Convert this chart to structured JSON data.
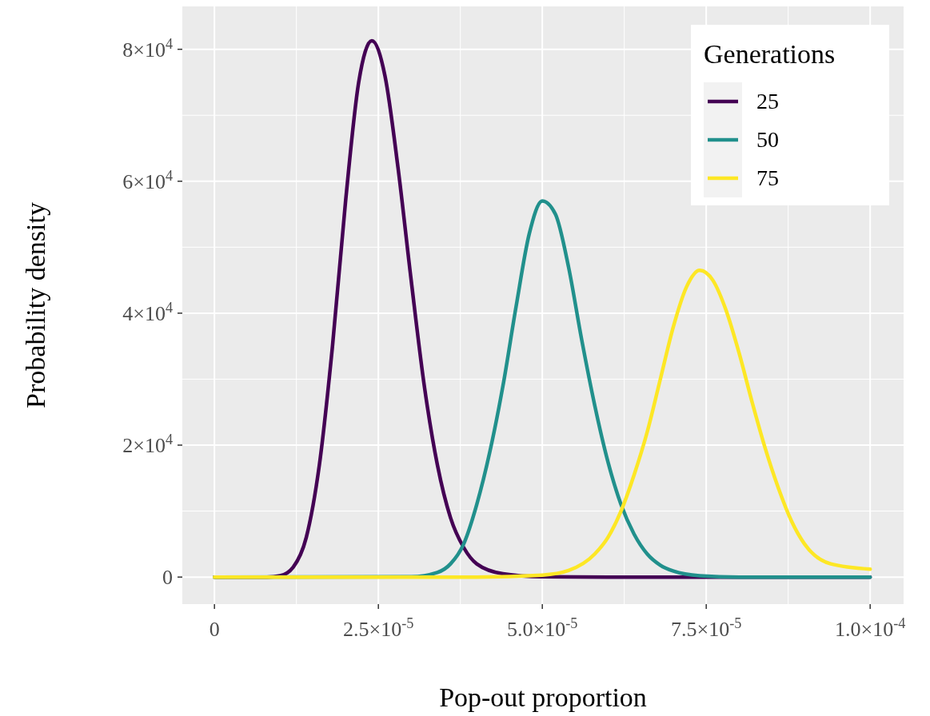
{
  "chart_data": {
    "type": "line",
    "xlabel": "Pop-out proportion",
    "ylabel": "Probability density",
    "legend_title": "Generations",
    "legend": "top right",
    "grid": true,
    "line_style": "solid",
    "marker": "none",
    "xlim": [
      -4.9e-06,
      0.0001051
    ],
    "ylim": [
      -4100,
      86500
    ],
    "xticks": [
      0,
      {
        "value": 2.5e-05,
        "label": "2.5×10$^{-5}$"
      },
      {
        "value": 5e-05,
        "label": "5.0×10$^{-5}$"
      },
      {
        "value": 7.5e-05,
        "label": "7.5×10$^{-5}$"
      },
      {
        "value": 0.0001,
        "label": "1.0×10$^{-4}$"
      }
    ],
    "yticks": [
      0,
      {
        "value": 20000,
        "label": "2×10$^{4}$"
      },
      {
        "value": 40000,
        "label": "4×10$^{4}$"
      },
      {
        "value": 60000,
        "label": "6×10$^{4}$"
      },
      {
        "value": 80000,
        "label": "8×10$^{4}$"
      }
    ],
    "series": [
      {
        "name": "25",
        "color": "#440154",
        "x": [
          0,
          8e-06,
          1e-05,
          1.2e-05,
          1.4e-05,
          1.6e-05,
          1.8e-05,
          2e-05,
          2.2e-05,
          2.4e-05,
          2.6e-05,
          2.8e-05,
          3e-05,
          3.2e-05,
          3.4e-05,
          3.6e-05,
          3.8e-05,
          4e-05,
          4.4e-05,
          5e-05,
          6e-05,
          0.0001
        ],
        "values": [
          0,
          0,
          200,
          1500,
          6000,
          17000,
          35000,
          57000,
          75000,
          81300,
          76000,
          62000,
          45000,
          29000,
          17000,
          9000,
          4500,
          2000,
          500,
          50,
          0,
          0
        ]
      },
      {
        "name": "50",
        "color": "#21908c",
        "x": [
          0,
          3e-05,
          3.4e-05,
          3.6e-05,
          3.8e-05,
          4e-05,
          4.2e-05,
          4.4e-05,
          4.6e-05,
          4.8e-05,
          5e-05,
          5.2e-05,
          5.4e-05,
          5.6e-05,
          5.8e-05,
          6e-05,
          6.2e-05,
          6.4e-05,
          6.6e-05,
          6.8e-05,
          7e-05,
          7.4e-05,
          8e-05,
          0.0001
        ],
        "values": [
          0,
          50,
          700,
          2000,
          5000,
          11000,
          19000,
          29000,
          41000,
          52000,
          57000,
          55000,
          47000,
          36000,
          26000,
          17500,
          11000,
          6500,
          3500,
          1800,
          900,
          200,
          0,
          0
        ]
      },
      {
        "name": "75",
        "color": "#fde725",
        "x": [
          0,
          4e-05,
          5e-05,
          5.4e-05,
          5.8e-05,
          6e-05,
          6.2e-05,
          6.4e-05,
          6.6e-05,
          6.8e-05,
          7e-05,
          7.2e-05,
          7.4e-05,
          7.6e-05,
          7.8e-05,
          8e-05,
          8.2e-05,
          8.4e-05,
          8.6e-05,
          8.8e-05,
          9e-05,
          9.4e-05,
          0.0001
        ],
        "values": [
          0,
          0,
          300,
          1000,
          3500,
          6000,
          10000,
          15500,
          22000,
          30000,
          38000,
          44000,
          46500,
          45000,
          40500,
          34000,
          26500,
          19500,
          13500,
          8500,
          5000,
          2000,
          1200
        ]
      }
    ]
  }
}
